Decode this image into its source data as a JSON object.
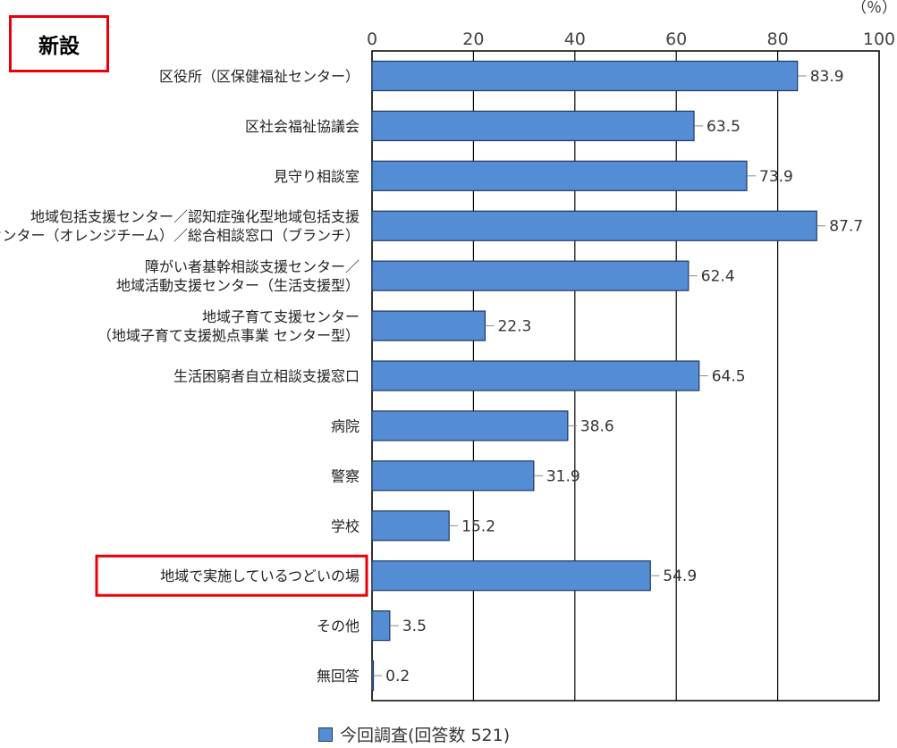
{
  "badge": "新設",
  "unit_label": "（％）",
  "legend_label": "今回調査(回答数 521)",
  "colors": {
    "bar": "#548dd4",
    "bar_stroke": "#1f3864",
    "highlight": "#e8000b"
  },
  "chart_data": {
    "type": "bar",
    "orientation": "horizontal",
    "xlim": [
      0,
      100
    ],
    "ticks": [
      0,
      20,
      40,
      60,
      80,
      100
    ],
    "grid": true,
    "categories": [
      [
        "区役所（区保健福祉センター）"
      ],
      [
        "区社会福祉協議会"
      ],
      [
        "見守り相談室"
      ],
      [
        "地域包括支援センター／認知症強化型地域包括支援",
        "センター（オレンジチーム）／総合相談窓口（ブランチ）"
      ],
      [
        "障がい者基幹相談支援センター／",
        "地域活動支援センター（生活支援型）"
      ],
      [
        "地域子育て支援センター",
        "（地域子育て支援拠点事業 センター型）"
      ],
      [
        "生活困窮者自立相談支援窓口"
      ],
      [
        "病院"
      ],
      [
        "警察"
      ],
      [
        "学校"
      ],
      [
        "地域で実施しているつどいの場"
      ],
      [
        "その他"
      ],
      [
        "無回答"
      ]
    ],
    "values": [
      83.9,
      63.5,
      73.9,
      87.7,
      62.4,
      22.3,
      64.5,
      38.6,
      31.9,
      15.2,
      54.9,
      3.5,
      0.2
    ],
    "highlighted_category_index": 10,
    "series": [
      {
        "name": "今回調査(回答数 521)"
      }
    ]
  }
}
